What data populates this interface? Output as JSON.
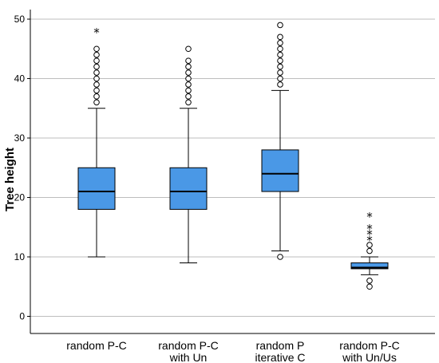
{
  "chart_data": {
    "type": "boxplot",
    "title": "",
    "xlabel": "",
    "ylabel": "Tree height",
    "ylim": [
      -3,
      51
    ],
    "yticks": [
      0,
      10,
      20,
      30,
      40,
      50
    ],
    "grid": "horizontal",
    "box_color": "#4a98e6",
    "categories": [
      {
        "lines": [
          "random P-C"
        ]
      },
      {
        "lines": [
          "random P-C",
          "with Un"
        ]
      },
      {
        "lines": [
          "random P",
          "iterative C"
        ]
      },
      {
        "lines": [
          "random P-C",
          "with Un/Us"
        ]
      }
    ],
    "boxes": [
      {
        "whisker_low": 10,
        "q1": 18,
        "median": 21,
        "q3": 25,
        "whisker_high": 35,
        "outliers": [
          36,
          37,
          38,
          39,
          40,
          41,
          42,
          43,
          44,
          45
        ],
        "extremes": [
          48
        ]
      },
      {
        "whisker_low": 9,
        "q1": 18,
        "median": 21,
        "q3": 25,
        "whisker_high": 35,
        "outliers": [
          36,
          37,
          38,
          39,
          40,
          41,
          42,
          43,
          45
        ],
        "extremes": []
      },
      {
        "whisker_low": 11,
        "q1": 21,
        "median": 24,
        "q3": 28,
        "whisker_high": 38,
        "outliers": [
          10,
          39,
          40,
          41,
          42,
          43,
          44,
          45,
          46,
          47,
          49
        ],
        "extremes": []
      },
      {
        "whisker_low": 7,
        "q1": 8,
        "median": 8.2,
        "q3": 9,
        "whisker_high": 10,
        "outliers": [
          5,
          6,
          11,
          12
        ],
        "extremes": [
          13,
          14,
          15,
          17
        ]
      }
    ]
  }
}
